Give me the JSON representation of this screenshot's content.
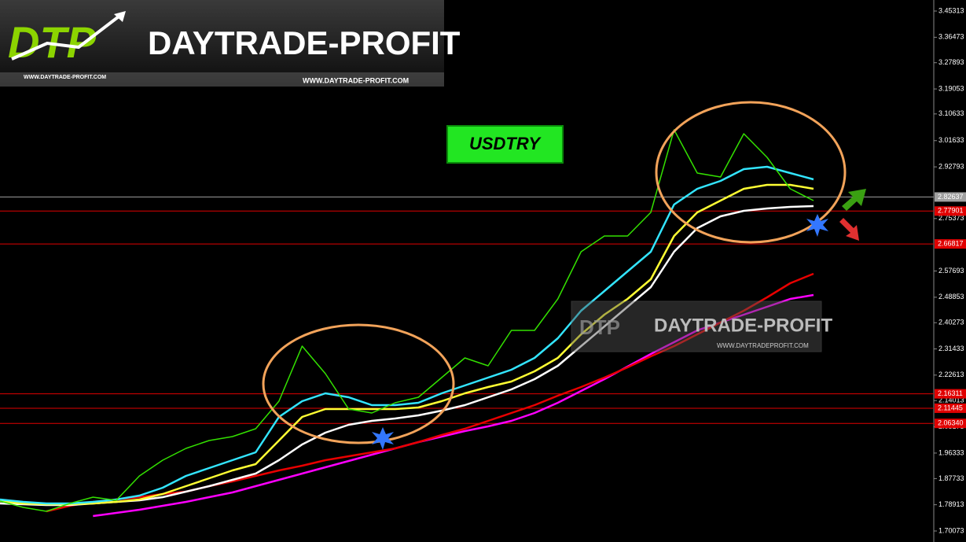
{
  "logo": {
    "mark": "DTP",
    "name": "DAYTRADE-PROFIT",
    "url_left": "WWW.DAYTRADE-PROFIT.COM",
    "url_right": "WWW.DAYTRADE-PROFIT.COM"
  },
  "watermark": {
    "name": "DAYTRADE-PROFIT",
    "url": "WWW.DAYTRADEPROFIT.COM"
  },
  "chart_data": {
    "type": "line",
    "title": "USDTRY",
    "categories": [
      null,
      null,
      null,
      null,
      null,
      null,
      null,
      null,
      null,
      null,
      null,
      null,
      null,
      null,
      null,
      null,
      null,
      null,
      null,
      null,
      null,
      null,
      null,
      null,
      null,
      null,
      null,
      null,
      null,
      null,
      null,
      null,
      null,
      null,
      null,
      null
    ],
    "series": [
      {
        "color": "#ff00ff",
        "values": [
          null,
          null,
          null,
          null,
          1.7511,
          1.7617,
          1.7723,
          1.7855,
          1.7988,
          1.8147,
          1.8306,
          1.8518,
          1.873,
          1.8943,
          1.9155,
          1.9367,
          1.9579,
          1.9791,
          2.0003,
          2.0188,
          2.0374,
          2.0533,
          2.0719,
          2.0984,
          2.1328,
          2.1726,
          2.2124,
          2.2548,
          2.2972,
          2.337,
          2.3767,
          2.4033,
          2.4298,
          2.4563,
          2.4828,
          2.496
        ]
      },
      {
        "color": "#e80000",
        "values": [
          null,
          null,
          1.767,
          1.7855,
          1.7988,
          1.8068,
          1.8147,
          1.8253,
          1.8333,
          1.8518,
          1.8677,
          1.8863,
          1.9048,
          1.9208,
          1.9393,
          1.9526,
          1.9658,
          1.9791,
          2.0003,
          2.0241,
          2.0454,
          2.0719,
          2.0984,
          2.1249,
          2.1567,
          2.1859,
          2.2177,
          2.2521,
          2.2893,
          2.3237,
          2.3635,
          2.4033,
          2.443,
          2.4881,
          2.5358,
          2.5676
        ]
      },
      {
        "color": "#ffffff",
        "values": [
          1.7935,
          1.7909,
          1.7882,
          1.7882,
          1.7935,
          1.7988,
          1.8041,
          1.8147,
          1.8333,
          1.8518,
          1.873,
          1.8943,
          1.9393,
          1.9923,
          2.0321,
          2.0586,
          2.0719,
          2.0798,
          2.0904,
          2.1063,
          2.1249,
          2.1514,
          2.1779,
          2.2124,
          2.2574,
          2.3237,
          2.39,
          2.4563,
          2.5226,
          2.6419,
          2.7214,
          2.7612,
          2.7797,
          2.7877,
          2.793,
          2.7956
        ]
      },
      {
        "color": "#ffff33",
        "values": [
          1.8014,
          1.7935,
          1.7909,
          1.7909,
          1.7935,
          1.7988,
          1.8068,
          1.8253,
          1.8518,
          1.8783,
          1.9048,
          1.9261,
          2.0056,
          2.0851,
          2.1116,
          2.1116,
          2.1116,
          2.1116,
          2.1169,
          2.1381,
          2.1647,
          2.1859,
          2.2044,
          2.2389,
          2.284,
          2.3635,
          2.4298,
          2.4828,
          2.5491,
          2.6949,
          2.7744,
          2.8142,
          2.8539,
          2.8672,
          2.8672,
          2.8539
        ]
      },
      {
        "color": "#33e5ff",
        "values": [
          1.8068,
          1.7988,
          1.7935,
          1.7935,
          1.7988,
          1.8068,
          1.82,
          1.8465,
          1.8863,
          1.9128,
          1.9393,
          1.9658,
          2.0851,
          2.1381,
          2.1647,
          2.1514,
          2.1249,
          2.1249,
          2.1328,
          2.1647,
          2.1912,
          2.2177,
          2.2442,
          2.284,
          2.3502,
          2.443,
          2.5093,
          2.5756,
          2.6419,
          2.8009,
          2.8539,
          2.8805,
          2.9202,
          2.9282,
          2.907,
          2.8858
        ]
      },
      {
        "color": "#33e000",
        "values": [
          1.8014,
          1.7802,
          1.767,
          1.7935,
          1.8147,
          1.8041,
          1.8863,
          1.9393,
          1.9791,
          2.0056,
          2.0188,
          2.0454,
          2.1381,
          2.3237,
          2.2309,
          2.1116,
          2.0984,
          2.1328,
          2.1514,
          2.2177,
          2.284,
          2.2574,
          2.3767,
          2.3767,
          2.4828,
          2.6419,
          2.6949,
          2.6949,
          2.7744,
          3.0528,
          2.907,
          2.8937,
          3.0395,
          2.96,
          2.8539,
          2.8142
        ]
      }
    ],
    "ylim": [
      1.6636,
      3.4903
    ],
    "yticks": [
      3.45313,
      3.36473,
      3.27893,
      3.19053,
      3.10633,
      3.01633,
      2.92793,
      2.75373,
      2.57693,
      2.48853,
      2.40273,
      2.31433,
      2.22613,
      2.14013,
      2.05173,
      1.96333,
      1.87733,
      1.78913,
      1.70073
    ],
    "levels": [
      {
        "value": 2.82637,
        "color": "#a0a0a0"
      },
      {
        "value": 2.77901,
        "color": "#e00000"
      },
      {
        "value": 2.66817,
        "color": "#e00000"
      },
      {
        "value": 2.16311,
        "color": "#e00000"
      },
      {
        "value": 2.11445,
        "color": "#e00000"
      },
      {
        "value": 2.0634,
        "label": "2.06340",
        "color": "#e00000"
      }
    ]
  }
}
